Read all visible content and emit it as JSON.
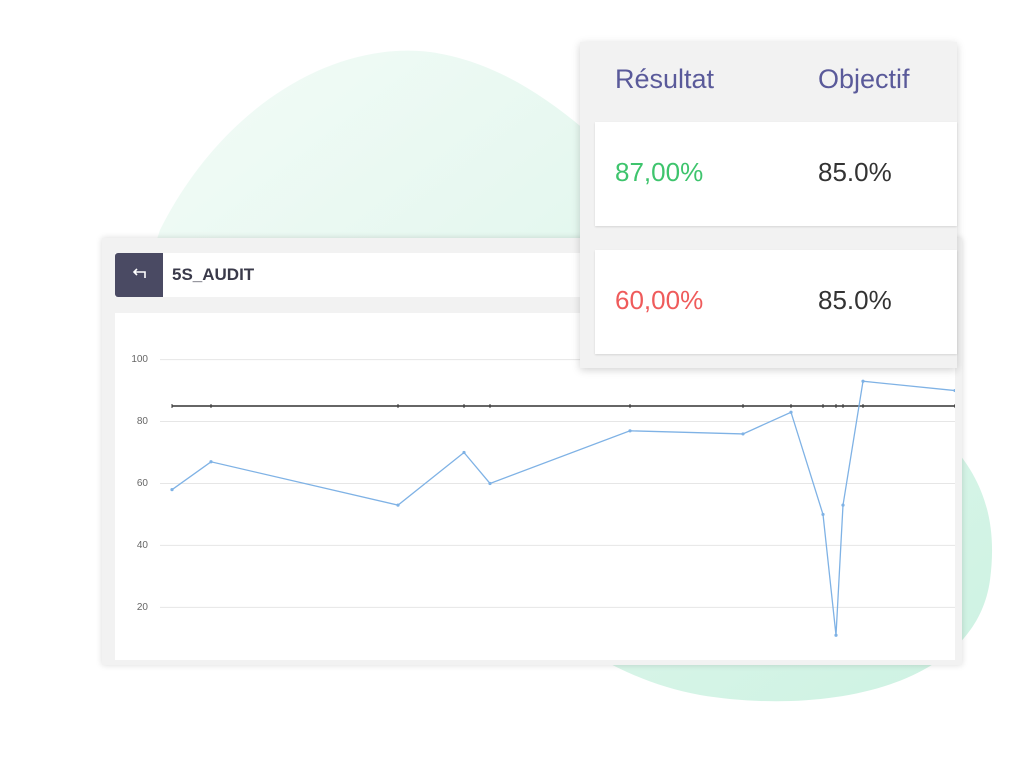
{
  "header": {
    "title": "5S_AUDIT"
  },
  "table": {
    "columns": [
      "Résultat",
      "Objectif"
    ],
    "rows": [
      [
        "87,00%",
        "85.0%"
      ],
      [
        "60,00%",
        "85.0%"
      ]
    ],
    "result_colors": [
      "#3ec46d",
      "#ef5b5b"
    ]
  },
  "chart_data": {
    "type": "line",
    "x": [
      0,
      39,
      226,
      292,
      318,
      458,
      571,
      619,
      651,
      664,
      671,
      691,
      783
    ],
    "series": [
      {
        "color": "#7fb2e5",
        "values": [
          58,
          67,
          53,
          70,
          60,
          77,
          76,
          83,
          50,
          11,
          53,
          93,
          90
        ]
      },
      {
        "color": "#333333",
        "values": [
          85,
          85,
          85,
          85,
          85,
          85,
          85,
          85,
          85,
          85,
          85,
          85,
          85
        ]
      }
    ],
    "xlim": [
      0,
      783
    ],
    "ylim": [
      3,
      106
    ],
    "yticks": [
      20,
      40,
      60,
      80,
      100
    ],
    "grid": true
  }
}
